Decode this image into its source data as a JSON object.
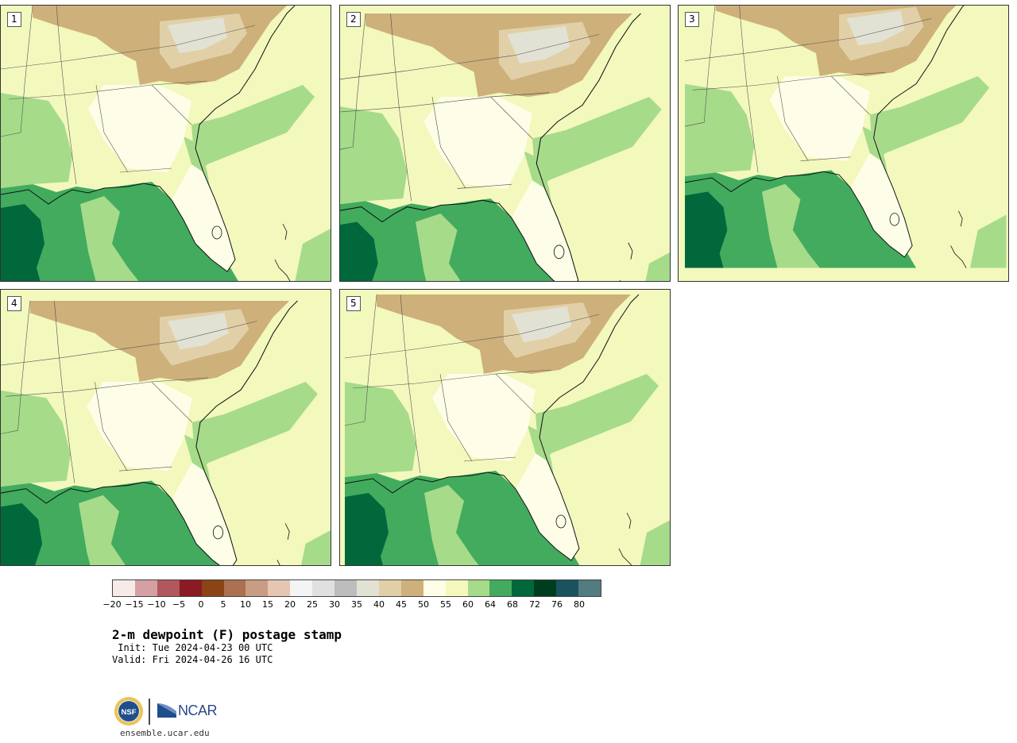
{
  "panels": [
    {
      "label": "1",
      "variant": 0
    },
    {
      "label": "2",
      "variant": 1
    },
    {
      "label": "3",
      "variant": 2
    },
    {
      "label": "4",
      "variant": 3
    },
    {
      "label": "5",
      "variant": 4
    }
  ],
  "colorbar": {
    "colors": [
      "#f7ebea",
      "#d4a0a2",
      "#b0585d",
      "#8a1a23",
      "#8c4416",
      "#ab7150",
      "#c89d84",
      "#e5c6b2",
      "#f4f4f4",
      "#e0e0e0",
      "#bdbdbd",
      "#e2e2d4",
      "#e1d0a7",
      "#cdb07a",
      "#fefee8",
      "#f5f8bd",
      "#a6db8a",
      "#42ab5e",
      "#00683a",
      "#003d20",
      "#1b5260",
      "#537c80"
    ],
    "tick_labels": [
      "−20",
      "−15",
      "−10",
      "−5",
      "0",
      "5",
      "10",
      "15",
      "20",
      "25",
      "30",
      "35",
      "40",
      "45",
      "50",
      "55",
      "60",
      "64",
      "68",
      "72",
      "76",
      "80"
    ]
  },
  "title": "2-m dewpoint (F) postage stamp",
  "init": " Init: Tue 2024-04-23 00 UTC",
  "valid": "Valid: Fri 2024-04-26 16 UTC",
  "logos": {
    "nsf": "NSF",
    "ncar": "NCAR"
  },
  "footer_url": "ensemble.ucar.edu"
}
